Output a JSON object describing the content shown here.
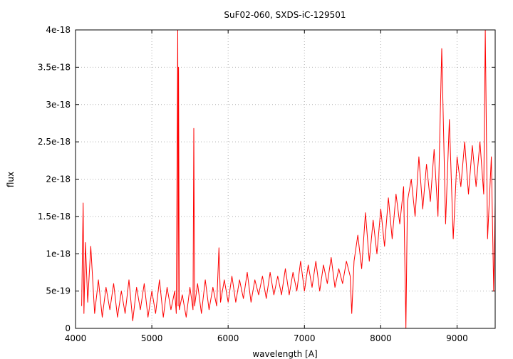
{
  "chart_data": {
    "type": "line",
    "title": "SuF02-060, SXDS-iC-129501",
    "xlabel": "wavelength [A]",
    "ylabel": "flux",
    "xlim": [
      4000,
      9500
    ],
    "ylim": [
      0,
      4e-18
    ],
    "grid": true,
    "x_ticks": [
      4000,
      5000,
      6000,
      7000,
      8000,
      9000
    ],
    "x_tick_labels": [
      "4000",
      "5000",
      "6000",
      "7000",
      "8000",
      "9000"
    ],
    "y_ticks": [
      0,
      5e-19,
      1e-18,
      1.5e-18,
      2e-18,
      2.5e-18,
      3e-18,
      3.5e-18,
      4e-18
    ],
    "y_tick_labels": [
      "0",
      "5e-19",
      "1e-18",
      "1.5e-18",
      "2e-18",
      "2.5e-18",
      "3e-18",
      "3.5e-18",
      "4e-18"
    ],
    "series": [
      {
        "color": "#ff0000",
        "x": [
          4080,
          4100,
          4110,
          4130,
          4160,
          4200,
          4250,
          4300,
          4350,
          4400,
          4450,
          4500,
          4550,
          4600,
          4650,
          4700,
          4750,
          4800,
          4850,
          4900,
          4950,
          5000,
          5050,
          5100,
          5150,
          5200,
          5250,
          5300,
          5320,
          5340,
          5345,
          5350,
          5360,
          5400,
          5450,
          5500,
          5540,
          5550,
          5560,
          5600,
          5650,
          5700,
          5750,
          5800,
          5850,
          5880,
          5900,
          5950,
          6000,
          6050,
          6100,
          6150,
          6200,
          6250,
          6300,
          6350,
          6400,
          6450,
          6500,
          6550,
          6600,
          6650,
          6700,
          6750,
          6800,
          6850,
          6900,
          6950,
          7000,
          7050,
          7100,
          7150,
          7200,
          7250,
          7300,
          7350,
          7400,
          7450,
          7500,
          7550,
          7600,
          7620,
          7650,
          7700,
          7750,
          7800,
          7850,
          7900,
          7950,
          8000,
          8050,
          8100,
          8150,
          8200,
          8250,
          8300,
          8330,
          8350,
          8400,
          8450,
          8500,
          8550,
          8600,
          8650,
          8700,
          8750,
          8800,
          8850,
          8900,
          8950,
          9000,
          9050,
          9100,
          9150,
          9200,
          9250,
          9300,
          9350,
          9370,
          9400,
          9450,
          9480,
          9500
        ],
        "y": [
          3e-19,
          1.68e-18,
          2e-19,
          1.15e-18,
          3.5e-19,
          1.1e-18,
          2e-19,
          6.5e-19,
          1.5e-19,
          5.5e-19,
          2.5e-19,
          6e-19,
          1.5e-19,
          5e-19,
          2e-19,
          6.5e-19,
          1e-19,
          5.5e-19,
          2.5e-19,
          6e-19,
          1.5e-19,
          5e-19,
          2e-19,
          6.5e-19,
          1.5e-19,
          5.5e-19,
          2.5e-19,
          5e-19,
          2e-19,
          4e-18,
          3e-19,
          3.5e-18,
          2.5e-19,
          4.5e-19,
          1.5e-19,
          5.5e-19,
          2.5e-19,
          2.68e-18,
          3e-19,
          6e-19,
          2e-19,
          6.5e-19,
          2.5e-19,
          5.5e-19,
          3e-19,
          1.08e-18,
          3.5e-19,
          6.5e-19,
          3.5e-19,
          7e-19,
          3.5e-19,
          6.5e-19,
          4e-19,
          7.5e-19,
          3.5e-19,
          6.5e-19,
          4.5e-19,
          7e-19,
          4e-19,
          7.5e-19,
          4.5e-19,
          7e-19,
          4.5e-19,
          8e-19,
          4.5e-19,
          7.5e-19,
          5e-19,
          9e-19,
          5e-19,
          8.5e-19,
          5.5e-19,
          9e-19,
          5e-19,
          8.5e-19,
          6e-19,
          9.5e-19,
          5.5e-19,
          8e-19,
          6e-19,
          9e-19,
          7e-19,
          2e-19,
          9e-19,
          1.25e-18,
          8e-19,
          1.55e-18,
          9e-19,
          1.45e-18,
          1e-18,
          1.6e-18,
          1.1e-18,
          1.75e-18,
          1.2e-18,
          1.8e-18,
          1.4e-18,
          1.9e-18,
          0.0,
          1.7e-18,
          2e-18,
          1.5e-18,
          2.3e-18,
          1.6e-18,
          2.2e-18,
          1.7e-18,
          2.4e-18,
          1.5e-18,
          3.75e-18,
          1.4e-18,
          2.8e-18,
          1.2e-18,
          2.3e-18,
          1.9e-18,
          2.5e-18,
          1.8e-18,
          2.45e-18,
          1.9e-18,
          2.5e-18,
          1.8e-18,
          4e-18,
          1.2e-18,
          2.3e-18,
          5e-19,
          1.7e-18
        ]
      }
    ]
  }
}
